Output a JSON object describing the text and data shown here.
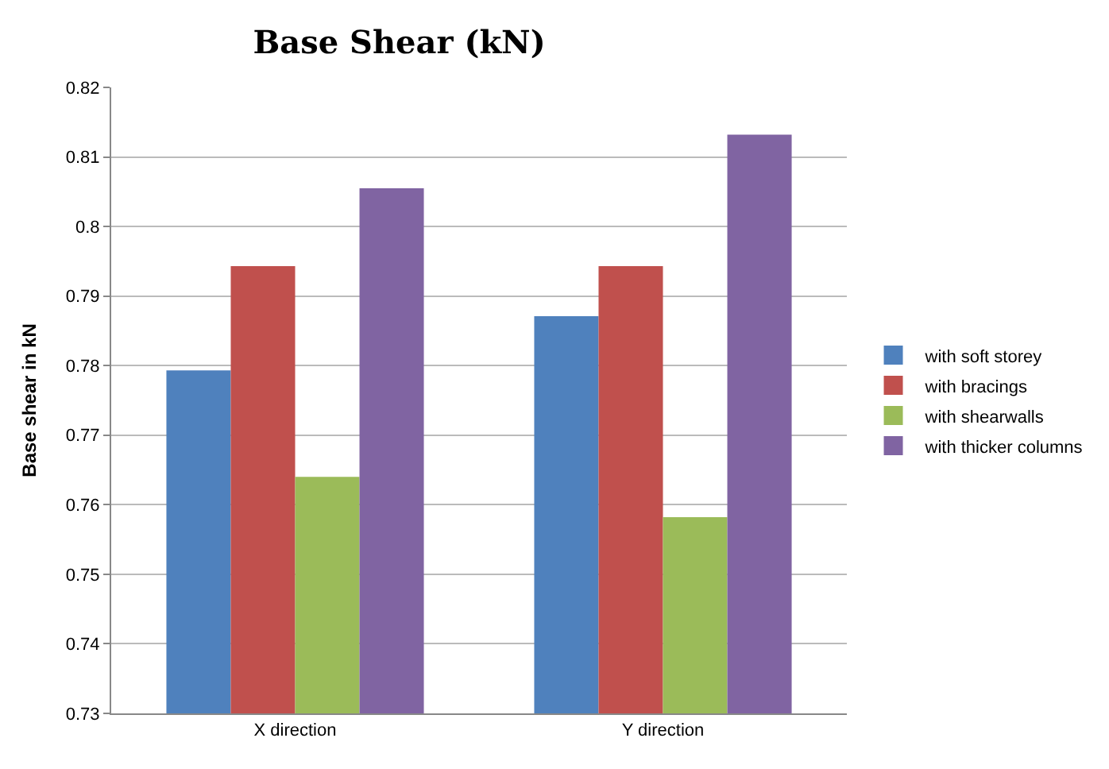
{
  "chart_data": {
    "type": "bar",
    "title": "Base Shear (kN)",
    "ylabel": "Base shear in kN",
    "categories": [
      "X direction",
      "Y direction"
    ],
    "series": [
      {
        "name": "with soft storey",
        "color": "#4f81bd",
        "values": [
          0.7793,
          0.7871
        ]
      },
      {
        "name": "with bracings",
        "color": "#c0504d",
        "values": [
          0.7943,
          0.7943
        ]
      },
      {
        "name": "with shearwalls",
        "color": "#9bbb59",
        "values": [
          0.764,
          0.7582
        ]
      },
      {
        "name": "with thicker columns",
        "color": "#8064a2",
        "values": [
          0.8055,
          0.8132
        ]
      }
    ],
    "ylim": [
      0.73,
      0.82
    ],
    "yticks": [
      0.73,
      0.74,
      0.75,
      0.76,
      0.77,
      0.78,
      0.79,
      0.8,
      0.81,
      0.82
    ],
    "grid": "y",
    "legend": "right"
  }
}
